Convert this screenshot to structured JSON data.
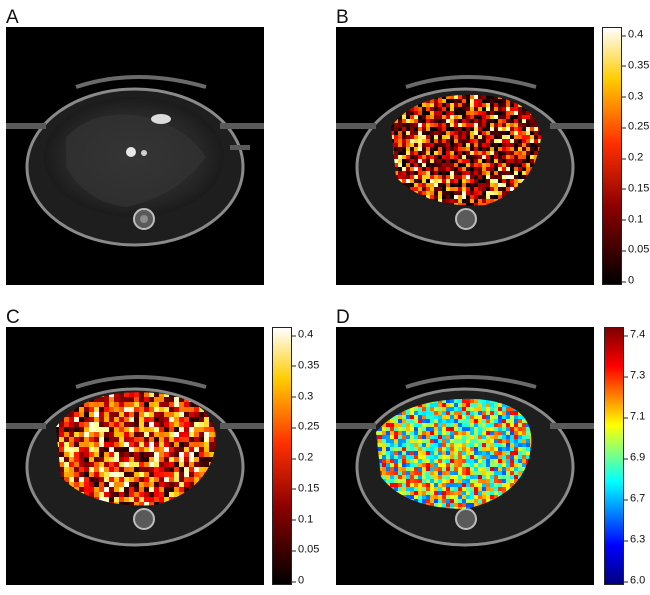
{
  "panels": [
    {
      "label": "A",
      "map": "none"
    },
    {
      "label": "B",
      "map": "hot",
      "colorbar": {
        "colormap": "hot",
        "ticks": [
          "0.4",
          "0.35",
          "0.3",
          "0.25",
          "0.2",
          "0.15",
          "0.1",
          "0.05",
          "0"
        ]
      }
    },
    {
      "label": "C",
      "map": "hot",
      "colorbar": {
        "colormap": "hot",
        "ticks": [
          "0.4",
          "0.35",
          "0.3",
          "0.25",
          "0.2",
          "0.15",
          "0.1",
          "0.05",
          "0"
        ]
      }
    },
    {
      "label": "D",
      "map": "jet",
      "colorbar": {
        "colormap": "jet",
        "ticks": [
          "7.4",
          "7.3",
          "7.1",
          "6.9",
          "6.7",
          "6.3",
          "6.0"
        ]
      }
    }
  ],
  "colors": {
    "background": "#000000",
    "hot_gradient": [
      "#000000",
      "#8b0000",
      "#ff3000",
      "#ffcc00",
      "#ffffff"
    ],
    "jet_gradient": [
      "#00007f",
      "#0000ff",
      "#00ffff",
      "#ffff00",
      "#ff0000",
      "#7f0000"
    ]
  }
}
